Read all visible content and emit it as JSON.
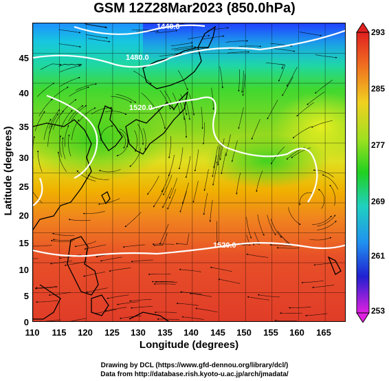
{
  "title": "GSM 12Z28Mar2023 (850.0hPa)",
  "axes": {
    "xlabel": "Longitude (degrees)",
    "ylabel": "Latitude (degrees)",
    "xticks": [
      "110",
      "115",
      "120",
      "125",
      "130",
      "135",
      "140",
      "145",
      "150",
      "155",
      "160",
      "165"
    ],
    "yticks": [
      "0",
      "5",
      "10",
      "15",
      "20",
      "25",
      "30",
      "35",
      "40",
      "45"
    ],
    "xlim": [
      110,
      169
    ],
    "ylim": [
      0,
      50
    ]
  },
  "colorbar": {
    "ticks": [
      "293",
      "285",
      "277",
      "269",
      "261",
      "253"
    ],
    "range": [
      253,
      293
    ]
  },
  "contours": [
    {
      "label": "1440.0"
    },
    {
      "label": "1480.0"
    },
    {
      "label": "1520.0"
    },
    {
      "label": "1520.0"
    }
  ],
  "credits": {
    "line1": "Drawing by DCL (https://www.gfd-dennou.org/library/dcl/)",
    "line2": "Data from http://database.rish.kyoto-u.ac.jp/arch/jmadata/"
  }
}
